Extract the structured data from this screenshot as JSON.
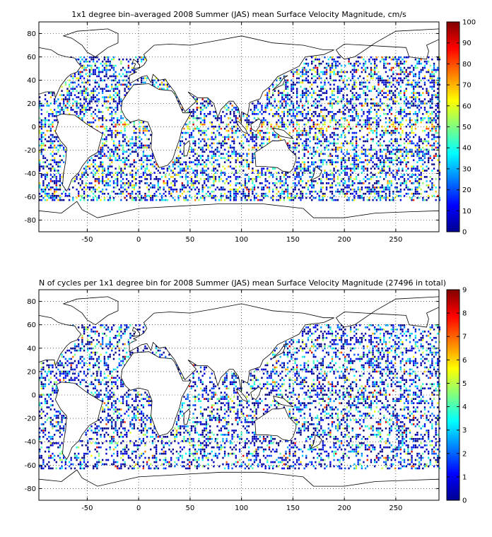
{
  "panels": [
    {
      "id": "velocity",
      "title": "1x1 degree bin–averaged 2008 Summer (JAS) mean Surface Velocity Magnitude, cm/s",
      "colorbar_ticks": [
        "0",
        "10",
        "20",
        "30",
        "40",
        "50",
        "60",
        "70",
        "80",
        "90",
        "100"
      ],
      "colorbar_range": [
        0,
        100
      ],
      "x_ticks": [
        "-50",
        "0",
        "50",
        "100",
        "150",
        "200",
        "250"
      ],
      "y_ticks": [
        "80",
        "60",
        "40",
        "20",
        "0",
        "-20",
        "-40",
        "-60",
        "-80"
      ]
    },
    {
      "id": "cycles",
      "title": "N of cycles per 1x1 degree bin for 2008 Summer (JAS) mean Surface Velocity Magnitude (27496 in total)",
      "colorbar_ticks": [
        "0",
        "1",
        "2",
        "3",
        "4",
        "5",
        "6",
        "7",
        "8",
        "9"
      ],
      "colorbar_range": [
        0,
        9
      ],
      "x_ticks": [
        "-50",
        "0",
        "50",
        "100",
        "150",
        "200",
        "250"
      ],
      "y_ticks": [
        "80",
        "60",
        "40",
        "20",
        "0",
        "-20",
        "-40",
        "-60",
        "-80"
      ]
    }
  ],
  "map": {
    "lon_range": [
      -97,
      292
    ],
    "lat_range": [
      -90,
      90
    ],
    "grid": "dotted",
    "colormap": "jet"
  }
}
